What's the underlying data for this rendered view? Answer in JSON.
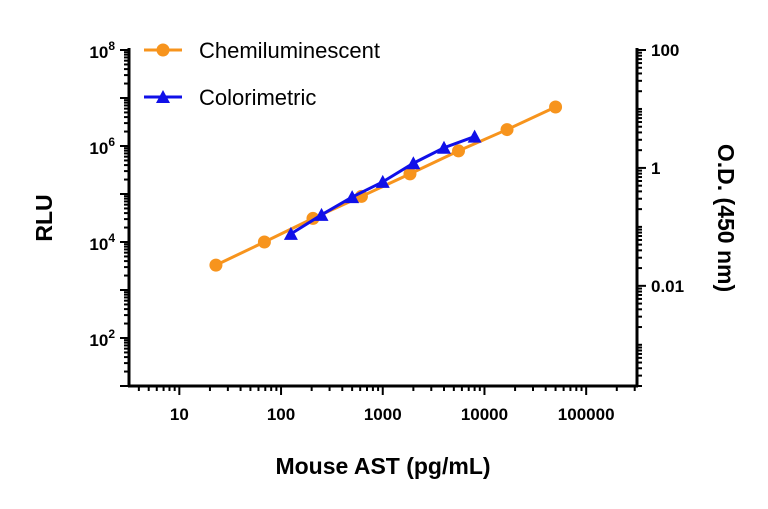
{
  "chart_data": {
    "type": "line",
    "title": "",
    "xlabel": "Mouse AST (pg/mL)",
    "ylabel": "RLU",
    "y2label": "O.D. (450 nm)",
    "xscale": "log",
    "yscale": "log",
    "y2scale": "log",
    "xlim": [
      3.2,
      316000
    ],
    "ylim": [
      10,
      100000000
    ],
    "y2lim": [
      0.0002,
      100
    ],
    "x_ticks": [
      "10",
      "100",
      "1000",
      "10000",
      "100000"
    ],
    "x_tick_values": [
      10,
      100,
      1000,
      10000,
      100000
    ],
    "y_ticks": [
      {
        "base": "10",
        "exp": "8",
        "value": 100000000
      },
      {
        "base": "10",
        "exp": "6",
        "value": 1000000
      },
      {
        "base": "10",
        "exp": "4",
        "value": 10000
      },
      {
        "base": "10",
        "exp": "2",
        "value": 100
      }
    ],
    "y2_ticks": [
      {
        "label": "100",
        "value": 100
      },
      {
        "label": "1",
        "value": 1
      },
      {
        "label": "0.01",
        "value": 0.01
      }
    ],
    "grid": false,
    "legend": "top-left",
    "series": [
      {
        "name": "Chemiluminescent",
        "axis": "left",
        "marker": "circle",
        "color": "#F7941D",
        "x": [
          22.9,
          68.6,
          206,
          617,
          1852,
          5556,
          16667,
          50000
        ],
        "y": [
          3300,
          10000,
          31000,
          89000,
          263000,
          790000,
          2200000,
          6500000
        ]
      },
      {
        "name": "Colorimetric",
        "axis": "right",
        "marker": "triangle",
        "color": "#1010E8",
        "x": [
          125,
          250,
          500,
          1000,
          2000,
          4000,
          8000
        ],
        "y": [
          0.076,
          0.16,
          0.32,
          0.58,
          1.2,
          2.2,
          3.4
        ]
      }
    ]
  }
}
